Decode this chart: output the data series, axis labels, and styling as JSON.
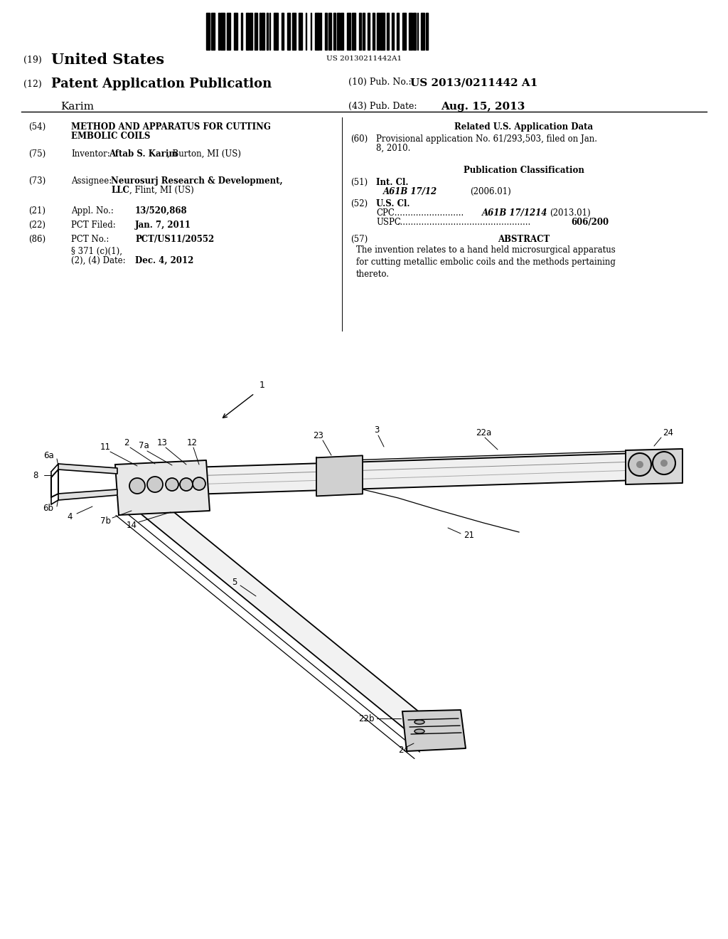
{
  "background_color": "#ffffff",
  "page_width": 10.24,
  "page_height": 13.2,
  "barcode_text": "US 20130211442A1",
  "header": {
    "country_num": "(19)",
    "country": "United States",
    "pub_type_num": "(12)",
    "pub_type": "Patent Application Publication",
    "pub_no_label": "(10) Pub. No.:",
    "pub_no": "US 2013/0211442 A1",
    "inventor_surname": "Karim",
    "pub_date_label": "(43) Pub. Date:",
    "pub_date": "Aug. 15, 2013"
  }
}
